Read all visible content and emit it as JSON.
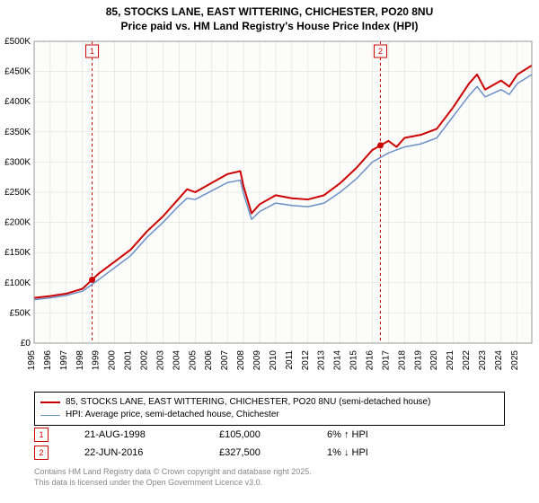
{
  "title_line1": "85, STOCKS LANE, EAST WITTERING, CHICHESTER, PO20 8NU",
  "title_line2": "Price paid vs. HM Land Registry's House Price Index (HPI)",
  "chart": {
    "type": "line",
    "background_color": "#ffffff",
    "plot_background": "#fcfcfa",
    "grid_color": "#d8d8d8",
    "x_start": 1995,
    "x_end": 2025.9,
    "xticks": [
      1995,
      1996,
      1997,
      1998,
      1999,
      2000,
      2001,
      2002,
      2003,
      2004,
      2005,
      2006,
      2007,
      2008,
      2009,
      2010,
      2011,
      2012,
      2013,
      2014,
      2015,
      2016,
      2017,
      2018,
      2019,
      2020,
      2021,
      2022,
      2023,
      2024,
      2025
    ],
    "ylim": [
      0,
      500000
    ],
    "yticks": [
      0,
      50000,
      100000,
      150000,
      200000,
      250000,
      300000,
      350000,
      400000,
      450000,
      500000
    ],
    "ytick_labels": [
      "£0",
      "£50K",
      "£100K",
      "£150K",
      "£200K",
      "£250K",
      "£300K",
      "£350K",
      "£400K",
      "£450K",
      "£500K"
    ],
    "series": [
      {
        "name": "price_paid",
        "color": "#cc0000",
        "width": 2,
        "points": [
          [
            1995,
            75000
          ],
          [
            1996,
            78000
          ],
          [
            1997,
            82000
          ],
          [
            1998,
            90000
          ],
          [
            1998.6,
            105000
          ],
          [
            1999,
            115000
          ],
          [
            2000,
            135000
          ],
          [
            2001,
            155000
          ],
          [
            2002,
            185000
          ],
          [
            2003,
            210000
          ],
          [
            2004,
            240000
          ],
          [
            2004.5,
            255000
          ],
          [
            2005,
            250000
          ],
          [
            2006,
            265000
          ],
          [
            2007,
            280000
          ],
          [
            2007.8,
            285000
          ],
          [
            2008,
            260000
          ],
          [
            2008.5,
            215000
          ],
          [
            2009,
            230000
          ],
          [
            2010,
            245000
          ],
          [
            2011,
            240000
          ],
          [
            2012,
            238000
          ],
          [
            2013,
            245000
          ],
          [
            2014,
            265000
          ],
          [
            2015,
            290000
          ],
          [
            2016,
            320000
          ],
          [
            2016.5,
            327500
          ],
          [
            2017,
            335000
          ],
          [
            2017.5,
            325000
          ],
          [
            2018,
            340000
          ],
          [
            2019,
            345000
          ],
          [
            2020,
            355000
          ],
          [
            2021,
            390000
          ],
          [
            2022,
            430000
          ],
          [
            2022.5,
            445000
          ],
          [
            2023,
            420000
          ],
          [
            2024,
            435000
          ],
          [
            2024.5,
            425000
          ],
          [
            2025,
            445000
          ],
          [
            2025.9,
            460000
          ]
        ]
      },
      {
        "name": "hpi",
        "color": "#6b8fc7",
        "width": 1.5,
        "points": [
          [
            1995,
            72000
          ],
          [
            1996,
            75000
          ],
          [
            1997,
            79000
          ],
          [
            1998,
            86000
          ],
          [
            1999,
            105000
          ],
          [
            2000,
            125000
          ],
          [
            2001,
            145000
          ],
          [
            2002,
            175000
          ],
          [
            2003,
            200000
          ],
          [
            2004,
            228000
          ],
          [
            2004.5,
            240000
          ],
          [
            2005,
            238000
          ],
          [
            2006,
            252000
          ],
          [
            2007,
            266000
          ],
          [
            2007.8,
            270000
          ],
          [
            2008,
            248000
          ],
          [
            2008.5,
            205000
          ],
          [
            2009,
            218000
          ],
          [
            2010,
            232000
          ],
          [
            2011,
            228000
          ],
          [
            2012,
            226000
          ],
          [
            2013,
            232000
          ],
          [
            2014,
            250000
          ],
          [
            2015,
            272000
          ],
          [
            2016,
            300000
          ],
          [
            2017,
            315000
          ],
          [
            2018,
            325000
          ],
          [
            2019,
            330000
          ],
          [
            2020,
            340000
          ],
          [
            2021,
            375000
          ],
          [
            2022,
            410000
          ],
          [
            2022.5,
            425000
          ],
          [
            2023,
            408000
          ],
          [
            2024,
            420000
          ],
          [
            2024.5,
            412000
          ],
          [
            2025,
            430000
          ],
          [
            2025.9,
            445000
          ]
        ]
      }
    ],
    "sale_markers": [
      {
        "num": 1,
        "x": 1998.6,
        "y": 105000,
        "date": "21-AUG-1998",
        "price": "£105,000",
        "delta": "6% ↑ HPI"
      },
      {
        "num": 2,
        "x": 2016.5,
        "y": 327500,
        "date": "22-JUN-2016",
        "price": "£327,500",
        "delta": "1% ↓ HPI"
      }
    ],
    "marker_line_color": "#cc0000",
    "marker_box_border": "#cc0000",
    "legend": [
      {
        "color": "#cc0000",
        "width": 2,
        "label": "85, STOCKS LANE, EAST WITTERING, CHICHESTER, PO20 8NU (semi-detached house)"
      },
      {
        "color": "#6b8fc7",
        "width": 1.5,
        "label": "HPI: Average price, semi-detached house, Chichester"
      }
    ]
  },
  "footnote_line1": "Contains HM Land Registry data © Crown copyright and database right 2025.",
  "footnote_line2": "This data is licensed under the Open Government Licence v3.0."
}
